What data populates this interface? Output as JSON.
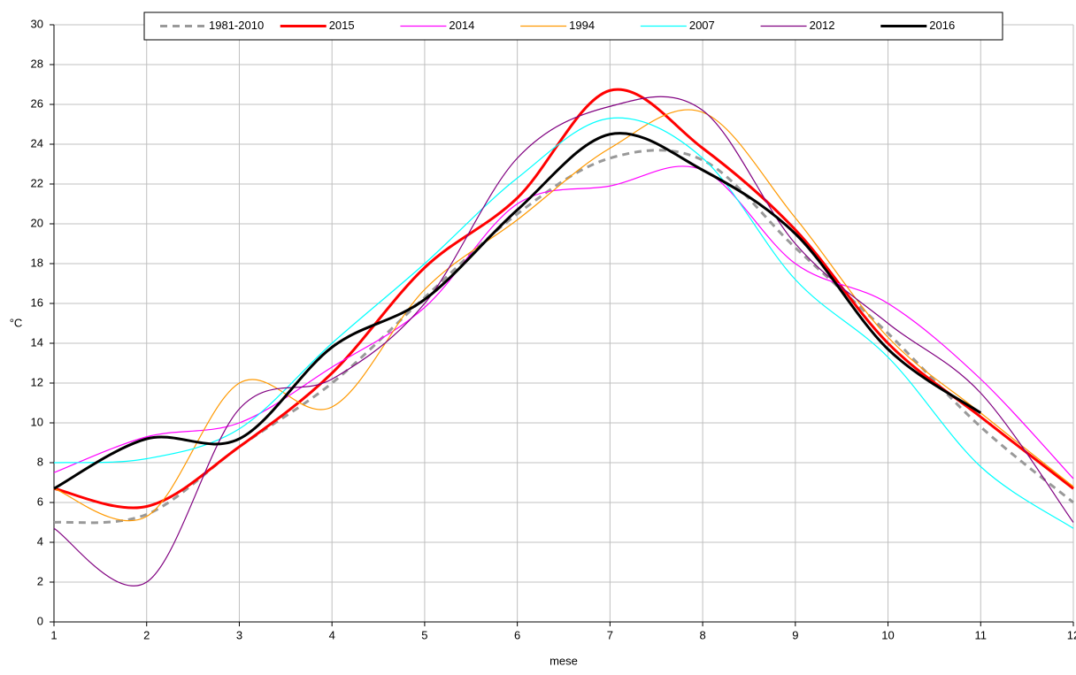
{
  "chart_data": {
    "type": "line",
    "x_label": "mese",
    "y_label": "°C",
    "x": [
      1,
      2,
      3,
      4,
      5,
      6,
      7,
      8,
      9,
      10,
      11,
      12
    ],
    "xlim": [
      1,
      12
    ],
    "xticks": [
      1,
      2,
      3,
      4,
      5,
      6,
      7,
      8,
      9,
      10,
      11,
      12
    ],
    "ylim": [
      0,
      30
    ],
    "yticks": [
      0,
      2,
      4,
      6,
      8,
      10,
      12,
      14,
      16,
      18,
      20,
      22,
      24,
      26,
      28,
      30
    ],
    "grid": true,
    "smooth": true,
    "legend": "top",
    "series": [
      {
        "name": "1981-2010",
        "color": "#999999",
        "width": 3,
        "dashed": true,
        "values": [
          5.0,
          5.4,
          8.8,
          12.0,
          16.3,
          20.5,
          23.3,
          23.2,
          18.8,
          14.5,
          9.8,
          6.0
        ]
      },
      {
        "name": "2015",
        "color": "#ff0000",
        "width": 3,
        "dashed": false,
        "values": [
          6.7,
          5.8,
          8.8,
          12.5,
          17.8,
          21.3,
          26.7,
          23.8,
          19.7,
          14.0,
          10.3,
          6.7
        ]
      },
      {
        "name": "2014",
        "color": "#ff00ff",
        "width": 1.2,
        "dashed": false,
        "values": [
          7.5,
          9.3,
          10.0,
          12.8,
          15.8,
          21.0,
          21.9,
          22.7,
          18.0,
          16.0,
          12.2,
          7.2
        ]
      },
      {
        "name": "1994",
        "color": "#ff9900",
        "width": 1.2,
        "dashed": false,
        "values": [
          6.7,
          5.3,
          12.0,
          10.8,
          16.7,
          20.2,
          23.8,
          25.6,
          20.3,
          14.3,
          10.5,
          6.8
        ]
      },
      {
        "name": "2007",
        "color": "#00ffff",
        "width": 1.2,
        "dashed": false,
        "values": [
          8.0,
          8.2,
          9.7,
          14.0,
          18.0,
          22.3,
          25.3,
          23.3,
          17.2,
          13.3,
          7.8,
          4.7
        ]
      },
      {
        "name": "2012",
        "color": "#800080",
        "width": 1.2,
        "dashed": false,
        "values": [
          4.7,
          2.0,
          10.7,
          12.2,
          16.0,
          23.3,
          25.9,
          25.7,
          19.0,
          15.0,
          11.5,
          5.0
        ]
      },
      {
        "name": "2016",
        "color": "#000000",
        "width": 3,
        "dashed": false,
        "values": [
          6.7,
          9.2,
          9.2,
          13.8,
          16.2,
          20.7,
          24.5,
          22.7,
          19.5,
          13.7,
          10.5,
          null
        ]
      }
    ]
  }
}
